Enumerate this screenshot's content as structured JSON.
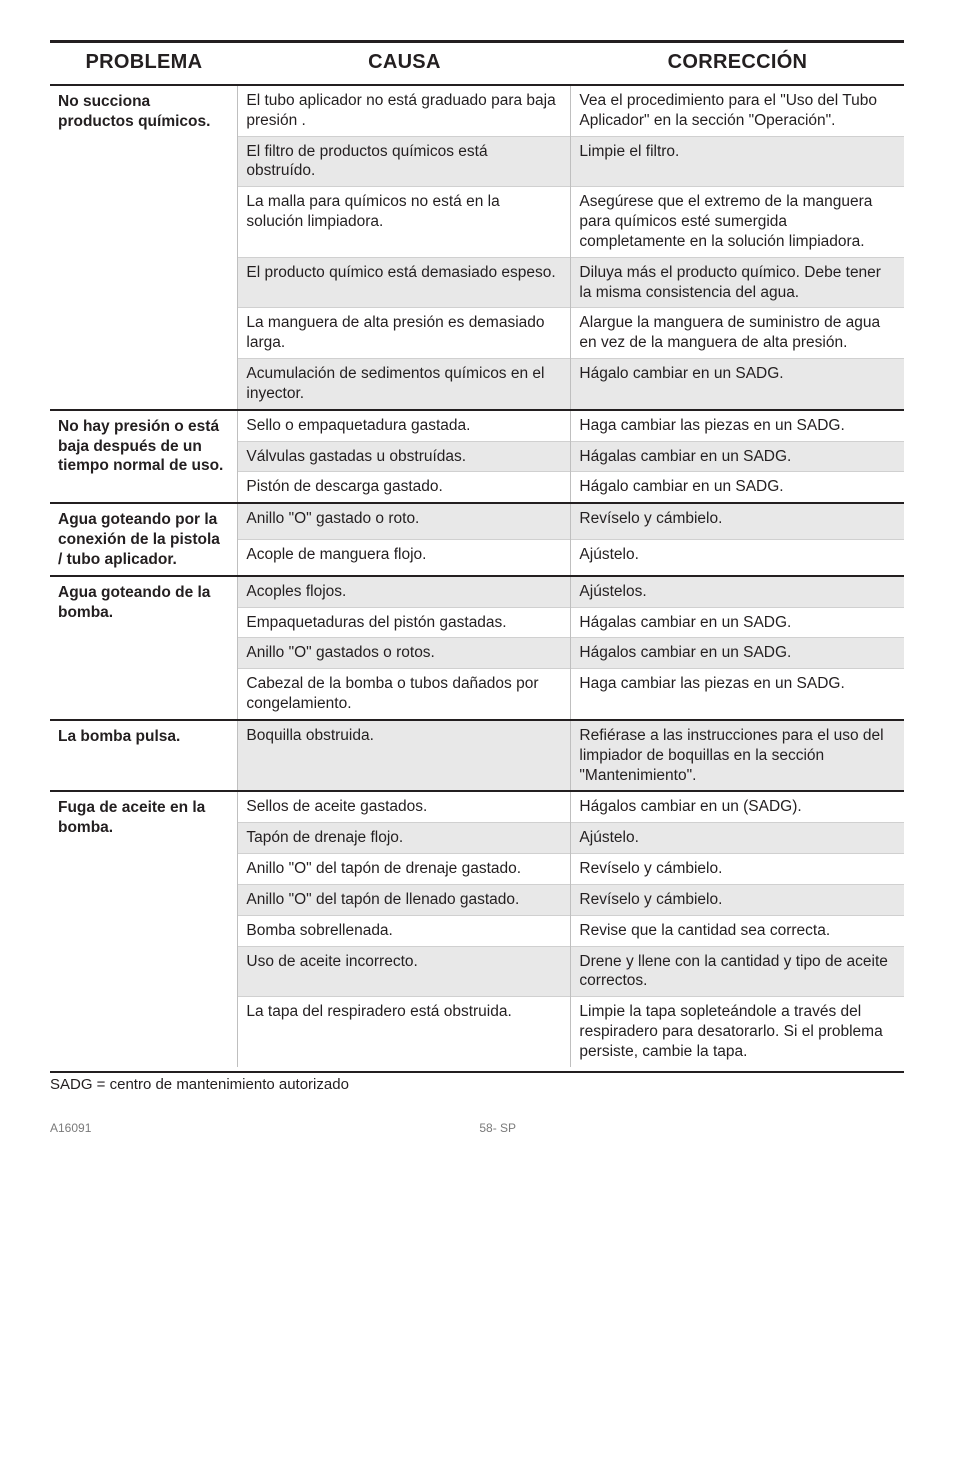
{
  "headers": {
    "problema": "PROBLEMA",
    "causa": "CAUSA",
    "correccion": "CORRECCIÓN"
  },
  "groups": [
    {
      "problema": "No succiona productos químicos.",
      "rows": [
        {
          "causa": "El tubo aplicador no está graduado para baja presión .",
          "correccion": "Vea el procedimiento para el \"Uso del Tubo Aplicador\" en la sección \"Operación\".",
          "shade": false
        },
        {
          "causa": "El filtro de productos químicos está obstruído.",
          "correccion": "Limpie el filtro.",
          "shade": true
        },
        {
          "causa": "La malla para químicos no está en la solución limpiadora.",
          "correccion": "Asegúrese que el extremo de la manguera para químicos esté sumergida completamente  en la solución limpiadora.",
          "shade": false
        },
        {
          "causa": "El producto químico está demasiado espeso.",
          "correccion": "Diluya más el producto químico. Debe tener la misma consistencia del agua.",
          "shade": true
        },
        {
          "causa": "La manguera de alta presión es demasiado larga.",
          "correccion": "Alargue la manguera de suministro de agua en vez de la manguera de alta presión.",
          "shade": false
        },
        {
          "causa": "Acumulación de sedimentos químicos en el inyector.",
          "correccion": "Hágalo cambiar en un SADG.",
          "shade": true
        }
      ]
    },
    {
      "problema": "No hay presión o está baja después de un tiempo normal de uso.",
      "rows": [
        {
          "causa": "Sello o empaquetadura gastada.",
          "correccion": "Haga cambiar las piezas en un SADG.",
          "shade": false
        },
        {
          "causa": "Válvulas gastadas u obstruídas.",
          "correccion": "Hágalas cambiar en un SADG.",
          "shade": true
        },
        {
          "causa": "Pistón de descarga gastado.",
          "correccion": "Hágalo cambiar en un SADG.",
          "shade": false
        }
      ]
    },
    {
      "problema": "Agua goteando por la conexión de la pistola / tubo aplicador.",
      "rows": [
        {
          "causa": "Anillo \"O\" gastado o roto.",
          "correccion": "Revíselo y cámbielo.",
          "shade": true
        },
        {
          "causa": "Acople de manguera flojo.",
          "correccion": "Ajústelo.",
          "shade": false
        }
      ]
    },
    {
      "problema": "Agua goteando de la bomba.",
      "rows": [
        {
          "causa": "Acoples flojos.",
          "correccion": "Ajústelos.",
          "shade": true
        },
        {
          "causa": "Empaquetaduras del pistón gastadas.",
          "correccion": "Hágalas cambiar en un SADG.",
          "shade": false
        },
        {
          "causa": "Anillo \"O\" gastados o rotos.",
          "correccion": "Hágalos cambiar en un SADG.",
          "shade": true
        },
        {
          "causa": "Cabezal de la bomba o tubos dañados por congelamiento.",
          "correccion": "Haga cambiar las piezas en un SADG.",
          "shade": false
        }
      ]
    },
    {
      "problema": "La bomba pulsa.",
      "rows": [
        {
          "causa": "Boquilla obstruida.",
          "correccion": "Refiérase a las instrucciones para el uso del limpiador de boquillas en la sección \"Mantenimiento\".",
          "shade": true
        }
      ]
    },
    {
      "problema": "Fuga de aceite en la bomba.",
      "rows": [
        {
          "causa": "Sellos de aceite gastados.",
          "correccion": "Hágalos cambiar en un (SADG).",
          "shade": false
        },
        {
          "causa": "Tapón de drenaje flojo.",
          "correccion": "Ajústelo.",
          "shade": true
        },
        {
          "causa": "Anillo \"O\" del tapón de drenaje gastado.",
          "correccion": "Revíselo y cámbielo.",
          "shade": false
        },
        {
          "causa": "Anillo \"O\" del tapón de llenado gastado.",
          "correccion": "Revíselo y cámbielo.",
          "shade": true
        },
        {
          "causa": "Bomba sobrellenada.",
          "correccion": "Revise que la cantidad sea correcta.",
          "shade": false
        },
        {
          "causa": "Uso de aceite incorrecto.",
          "correccion": "Drene y llene con la cantidad y tipo de aceite correctos.",
          "shade": true
        },
        {
          "causa": "La tapa del respiradero está obstruida.",
          "correccion": "Limpie la tapa sopleteándole a través del respiradero para desatorarlo. Si el problema persiste, cambie la tapa.",
          "shade": false
        }
      ]
    }
  ],
  "footnote": "SADG = centro de mantenimiento autorizado",
  "footer": {
    "left": "A16091",
    "center": "58- SP"
  }
}
